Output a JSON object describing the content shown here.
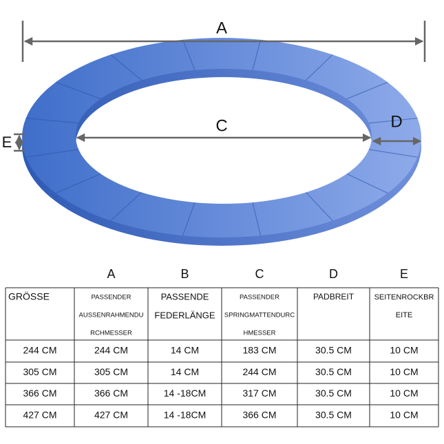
{
  "diagram": {
    "labels": {
      "a": "A",
      "c": "C",
      "d": "D",
      "e": "E"
    }
  },
  "table": {
    "column_letters": [
      "A",
      "B",
      "C",
      "D",
      "E"
    ],
    "header": [
      [
        "GRÖSSE"
      ],
      [
        "PASSENDER",
        "AUSSENRAHMENDU",
        "RCHMESSER"
      ],
      [
        "PASSENDE",
        "FEDERLÄNGE"
      ],
      [
        "PASSENDER",
        "SPRINGMATTENDURC",
        "HMESSER"
      ],
      [
        "PADBREIT"
      ],
      [
        "SEITENROCKBR",
        "EITE"
      ]
    ],
    "rows": [
      [
        "244 CM",
        "244 CM",
        "14 CM",
        "183 CM",
        "30.5 CM",
        "10 CM"
      ],
      [
        "305 CM",
        "305 CM",
        "14 CM",
        "244 CM",
        "30.5 CM",
        "10 CM"
      ],
      [
        "366 CM",
        "366 CM",
        "14 -18CM",
        "317 CM",
        "30.5 CM",
        "10 CM"
      ],
      [
        "427 CM",
        "427 CM",
        "14 -18CM",
        "366 CM",
        "30.5 CM",
        "10 CM"
      ]
    ]
  }
}
